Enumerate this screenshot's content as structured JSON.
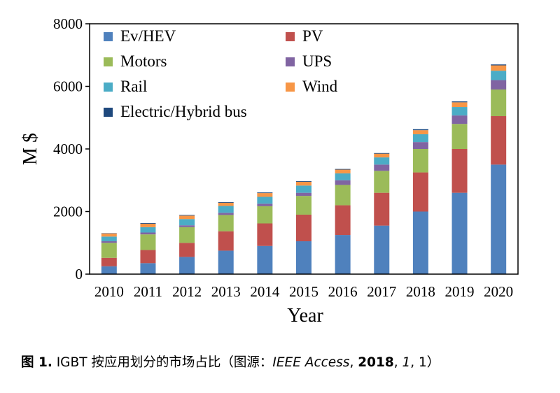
{
  "chart_data": {
    "type": "bar",
    "stacked": true,
    "title": "",
    "xlabel": "Year",
    "ylabel": "M $",
    "ylim": [
      0,
      8000
    ],
    "yticks": [
      "0",
      "2000",
      "4000",
      "6000",
      "8000"
    ],
    "categories": [
      "2010",
      "2011",
      "2012",
      "2013",
      "2014",
      "2015",
      "2016",
      "2017",
      "2018",
      "2019",
      "2020"
    ],
    "legend_position": "top-left, inside",
    "series": [
      {
        "name": "Ev/HEV",
        "color": "#4f81bd",
        "values": [
          250,
          350,
          550,
          750,
          900,
          1050,
          1250,
          1550,
          2000,
          2600,
          3500
        ]
      },
      {
        "name": "PV",
        "color": "#c0504d",
        "values": [
          270,
          420,
          450,
          620,
          720,
          850,
          950,
          1050,
          1250,
          1400,
          1550
        ]
      },
      {
        "name": "Motors",
        "color": "#9bbb59",
        "values": [
          480,
          500,
          500,
          520,
          550,
          600,
          650,
          700,
          750,
          800,
          850
        ]
      },
      {
        "name": "UPS",
        "color": "#8064a2",
        "values": [
          50,
          60,
          60,
          70,
          80,
          100,
          150,
          200,
          220,
          270,
          300
        ]
      },
      {
        "name": "Rail",
        "color": "#4bacc6",
        "values": [
          150,
          170,
          200,
          220,
          220,
          230,
          220,
          230,
          250,
          270,
          300
        ]
      },
      {
        "name": "Wind",
        "color": "#f79646",
        "values": [
          100,
          110,
          110,
          100,
          120,
          120,
          120,
          120,
          130,
          150,
          170
        ]
      },
      {
        "name": "Electric/Hybrid bus",
        "color": "#1f497d",
        "values": [
          10,
          20,
          20,
          20,
          20,
          20,
          20,
          20,
          30,
          30,
          30
        ]
      }
    ]
  },
  "caption": {
    "label": "图 1.",
    "text": " IGBT 按应用划分的市场占比（图源：",
    "journal": "IEEE Access",
    "sep1": ", ",
    "year": "2018",
    "sep2": ", ",
    "volume": "1",
    "tail": ", 1）"
  }
}
